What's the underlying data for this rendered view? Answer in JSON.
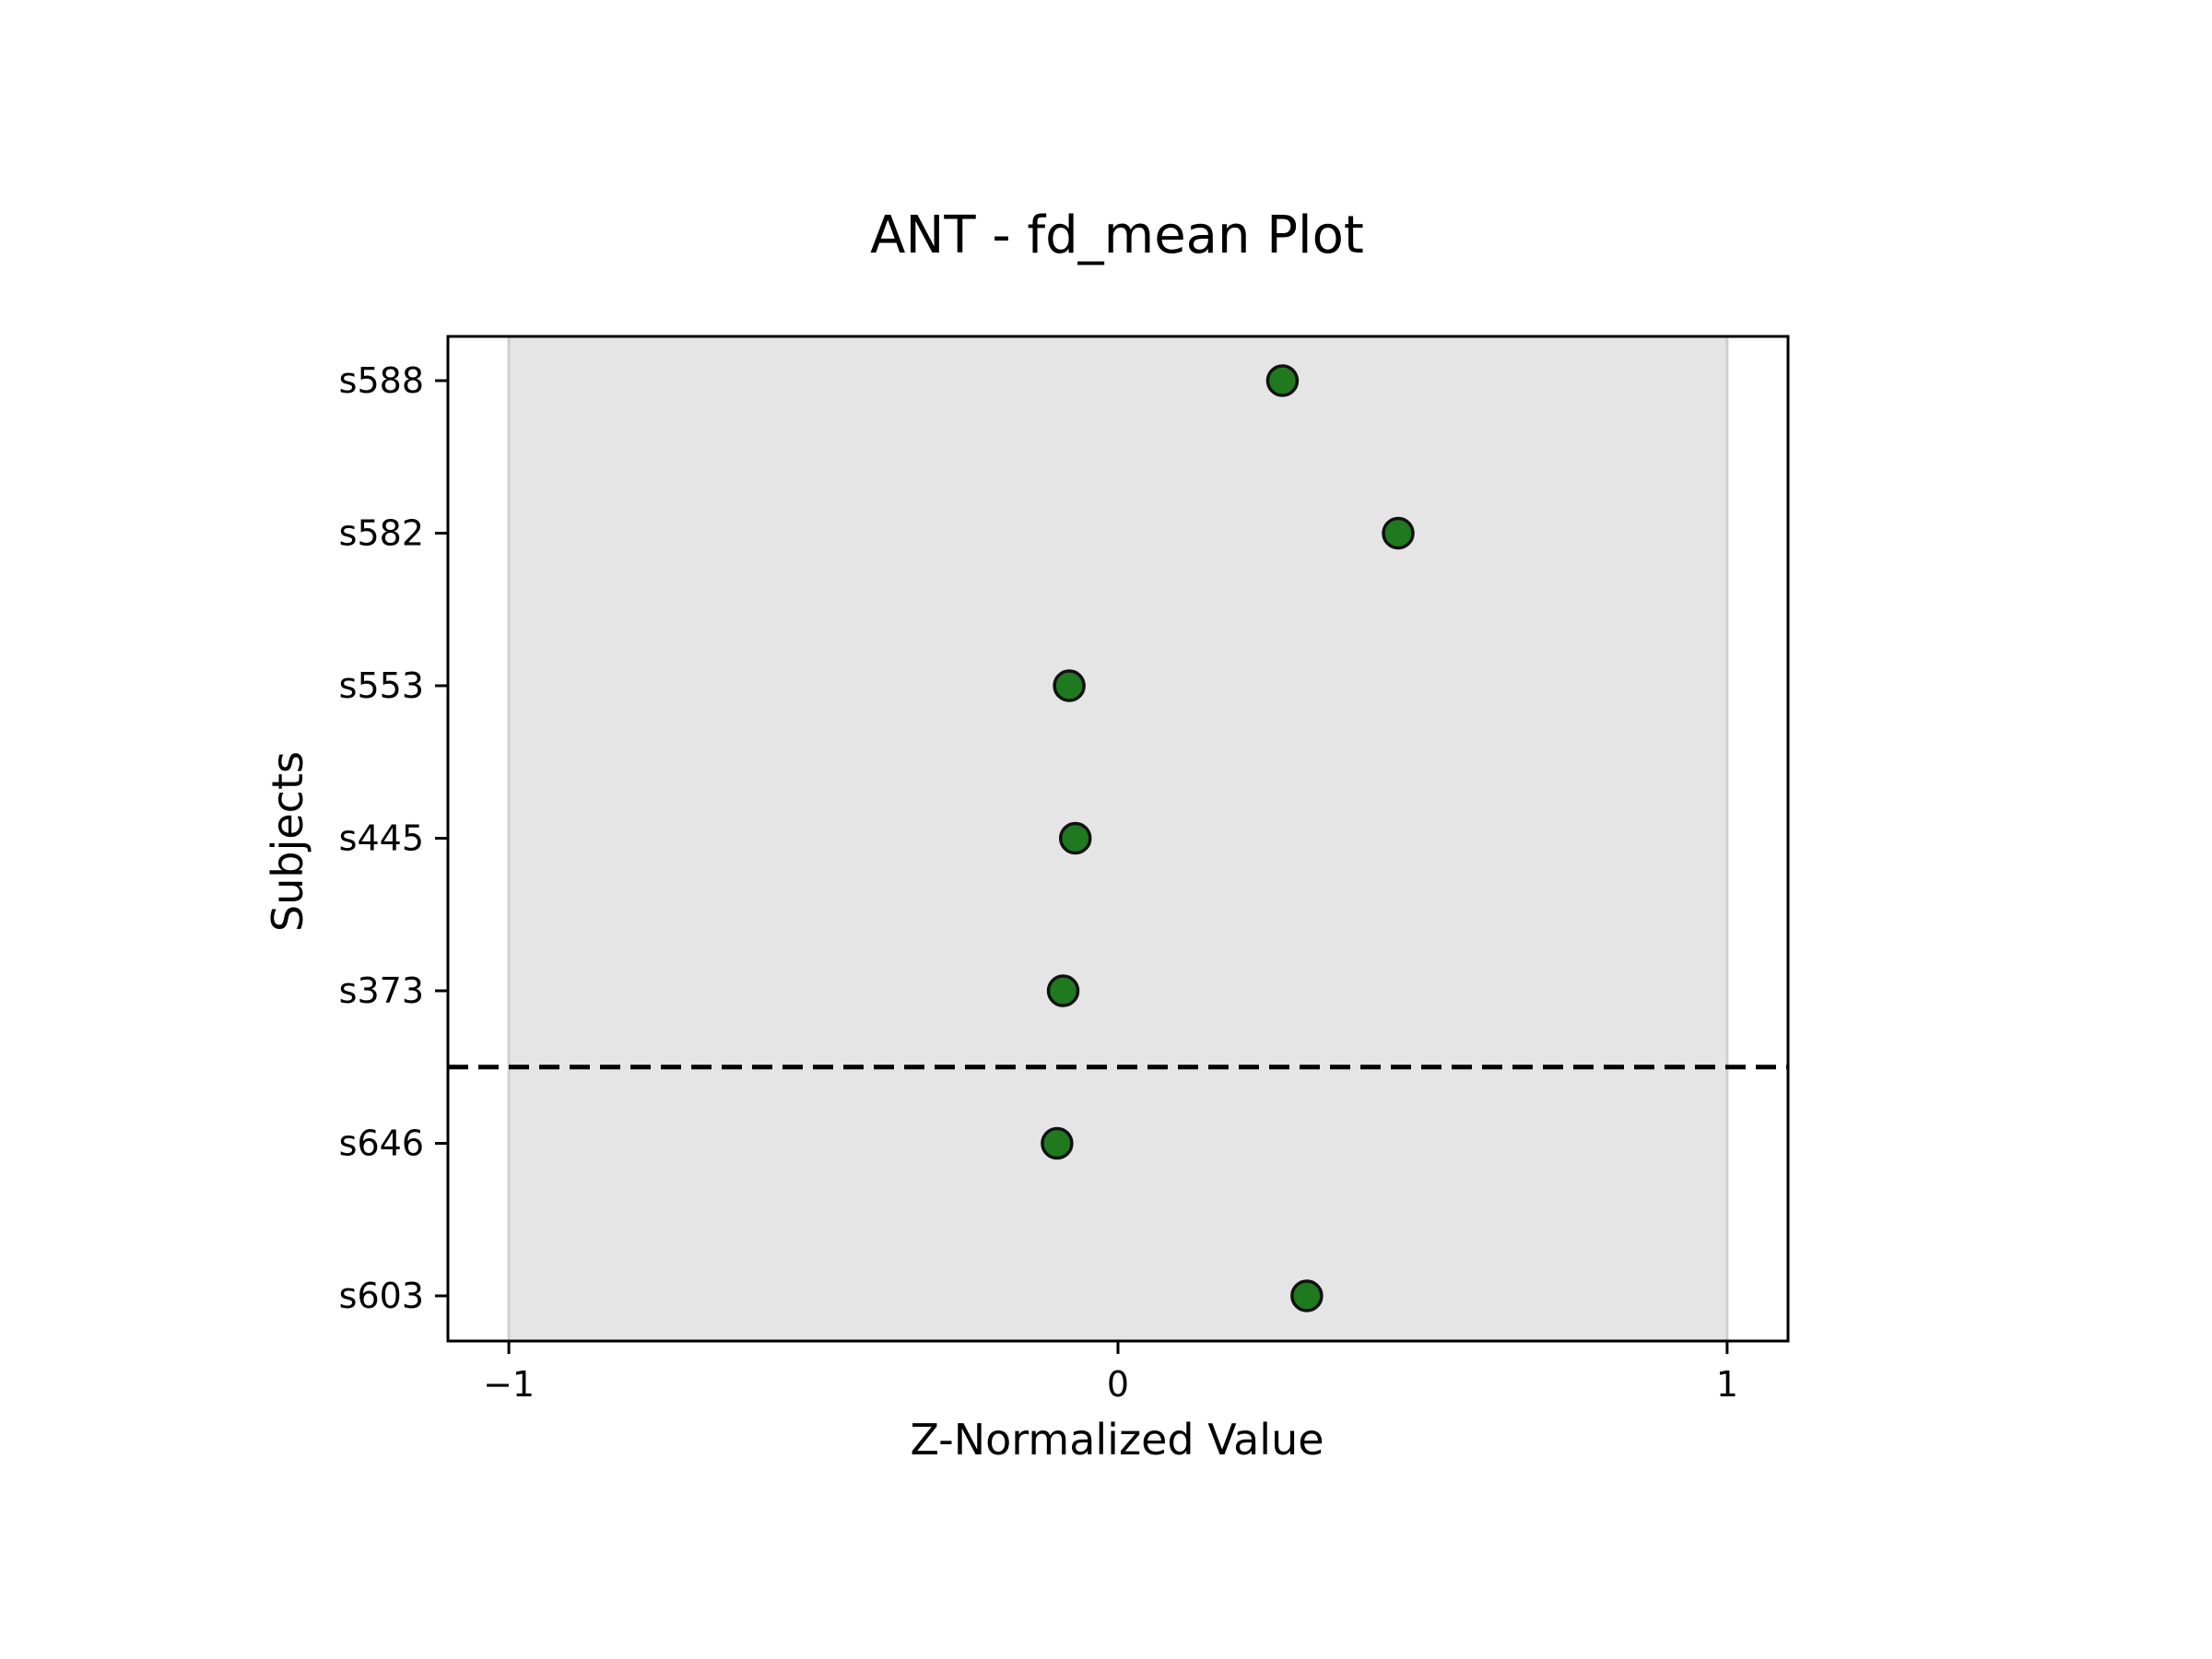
{
  "chart_data": {
    "type": "scatter",
    "title": "ANT - fd_mean Plot",
    "xlabel": "Z-Normalized Value",
    "ylabel": "Subjects",
    "xlim": [
      -1.1,
      1.1
    ],
    "xticks": [
      -1,
      0,
      1
    ],
    "xtick_labels": [
      "−1",
      "0",
      "1"
    ],
    "subjects_top_to_bottom": [
      "s588",
      "s582",
      "s553",
      "s445",
      "s373",
      "s646",
      "s603"
    ],
    "points": [
      {
        "subject": "s588",
        "x": 0.27
      },
      {
        "subject": "s582",
        "x": 0.46
      },
      {
        "subject": "s553",
        "x": -0.08
      },
      {
        "subject": "s445",
        "x": -0.07
      },
      {
        "subject": "s373",
        "x": -0.09
      },
      {
        "subject": "s646",
        "x": -0.1
      },
      {
        "subject": "s603",
        "x": 0.31
      }
    ],
    "shaded_band": {
      "from": -1,
      "to": 1,
      "color": "#e5e5e5"
    },
    "dashed_separator_between": [
      "s373",
      "s646"
    ],
    "marker_color": "#1f7a1f",
    "grid": false,
    "legend": "none"
  }
}
